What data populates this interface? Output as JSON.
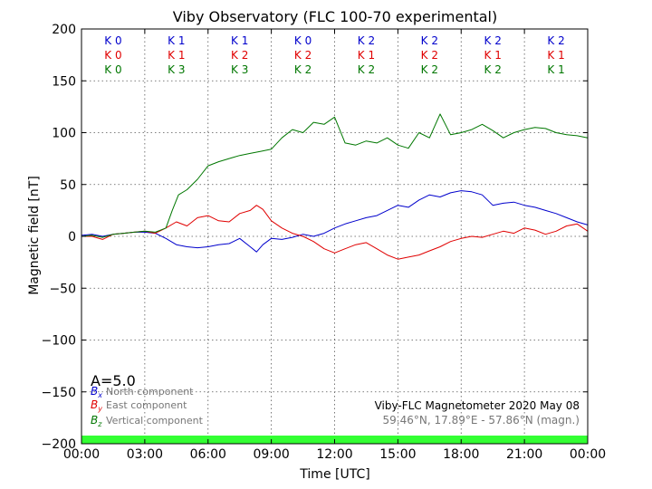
{
  "chart_data": {
    "type": "line",
    "title": "Viby Observatory (FLC 100-70 experimental)",
    "xlabel": "Time [UTC]",
    "ylabel": "Magnetic field [nT]",
    "xlim": [
      0,
      24
    ],
    "ylim": [
      -200,
      200
    ],
    "x_ticks": [
      0,
      3,
      6,
      9,
      12,
      15,
      18,
      21,
      24
    ],
    "x_tick_labels": [
      "00:00",
      "03:00",
      "06:00",
      "09:00",
      "12:00",
      "15:00",
      "18:00",
      "21:00",
      "00:00"
    ],
    "y_ticks": [
      -200,
      -150,
      -100,
      -50,
      0,
      50,
      100,
      150,
      200
    ],
    "y_tick_labels": [
      "−200",
      "−150",
      "−100",
      "−50",
      "0",
      "50",
      "100",
      "150",
      "200"
    ],
    "grid": true,
    "k_index_rows": [
      {
        "color": "#0000cc",
        "values": [
          "K 0",
          "K 1",
          "K 1",
          "K 0",
          "K 2",
          "K 2",
          "K 2",
          "K 2"
        ]
      },
      {
        "color": "#e00000",
        "values": [
          "K 0",
          "K 1",
          "K 2",
          "K 2",
          "K 1",
          "K 2",
          "K 1",
          "K 1"
        ]
      },
      {
        "color": "#007700",
        "values": [
          "K 0",
          "K 3",
          "K 3",
          "K 2",
          "K 2",
          "K 2",
          "K 2",
          "K 1"
        ]
      }
    ],
    "a_index": "A=5.0",
    "legend_placement": "bottom-left",
    "legend": [
      {
        "symbol": "B",
        "sub": "x",
        "label": "North component",
        "color": "#0000cc"
      },
      {
        "symbol": "B",
        "sub": "y",
        "label": "East component",
        "color": "#e00000"
      },
      {
        "symbol": "B",
        "sub": "z",
        "label": "Vertical component",
        "color": "#007700"
      }
    ],
    "info_line_1": "Viby-FLC Magnetometer 2020 May 08",
    "info_line_2": "59.46°N, 17.89°E - 57.86°N (magn.)",
    "activity_bar_color": "#33ff33",
    "series": [
      {
        "name": "North component",
        "color": "#0000cc",
        "x": [
          0,
          0.5,
          1,
          1.5,
          2,
          2.5,
          3,
          3.5,
          4,
          4.5,
          5,
          5.5,
          6,
          6.5,
          7,
          7.5,
          8,
          8.3,
          8.6,
          9,
          9.5,
          10,
          10.5,
          11,
          11.5,
          12,
          12.5,
          13,
          13.5,
          14,
          14.5,
          15,
          15.5,
          16,
          16.5,
          17,
          17.5,
          18,
          18.5,
          19,
          19.5,
          20,
          20.5,
          21,
          21.5,
          22,
          22.5,
          23,
          23.5,
          24
        ],
        "y": [
          1,
          2,
          0,
          2,
          3,
          4,
          4,
          3,
          -2,
          -8,
          -10,
          -11,
          -10,
          -8,
          -7,
          -2,
          -10,
          -15,
          -8,
          -2,
          -3,
          -1,
          2,
          0,
          3,
          8,
          12,
          15,
          18,
          20,
          25,
          30,
          28,
          35,
          40,
          38,
          42,
          44,
          43,
          40,
          30,
          32,
          33,
          30,
          28,
          25,
          22,
          18,
          14,
          11
        ]
      },
      {
        "name": "East component",
        "color": "#e00000",
        "x": [
          0,
          0.5,
          1,
          1.5,
          2,
          2.5,
          3,
          3.5,
          4,
          4.5,
          5,
          5.5,
          6,
          6.5,
          7,
          7.5,
          8,
          8.3,
          8.6,
          9,
          9.5,
          10,
          10.5,
          11,
          11.5,
          12,
          12.5,
          13,
          13.5,
          14,
          14.5,
          15,
          15.5,
          16,
          16.5,
          17,
          17.5,
          18,
          18.5,
          19,
          19.5,
          20,
          20.5,
          21,
          21.5,
          22,
          22.5,
          23,
          23.5,
          24
        ],
        "y": [
          0,
          0,
          -3,
          2,
          3,
          4,
          5,
          3,
          8,
          14,
          10,
          18,
          20,
          15,
          14,
          22,
          25,
          30,
          26,
          15,
          8,
          3,
          0,
          -5,
          -12,
          -16,
          -12,
          -8,
          -6,
          -12,
          -18,
          -22,
          -20,
          -18,
          -14,
          -10,
          -5,
          -2,
          0,
          -1,
          2,
          5,
          3,
          8,
          6,
          2,
          5,
          10,
          12,
          5
        ]
      },
      {
        "name": "Vertical component",
        "color": "#007700",
        "x": [
          0,
          0.5,
          1,
          1.5,
          2,
          2.5,
          3,
          3.5,
          4,
          4.3,
          4.6,
          5,
          5.5,
          6,
          6.5,
          7,
          7.5,
          8,
          8.5,
          9,
          9.5,
          10,
          10.5,
          11,
          11.5,
          12,
          12.5,
          13,
          13.5,
          14,
          14.5,
          15,
          15.5,
          16,
          16.5,
          17,
          17.5,
          18,
          18.5,
          19,
          19.5,
          20,
          20.5,
          21,
          21.5,
          22,
          22.5,
          23,
          23.5,
          24
        ],
        "y": [
          0,
          1,
          -1,
          2,
          3,
          4,
          5,
          4,
          8,
          25,
          40,
          45,
          55,
          68,
          72,
          75,
          78,
          80,
          82,
          84,
          95,
          103,
          100,
          110,
          108,
          115,
          90,
          88,
          92,
          90,
          95,
          88,
          85,
          100,
          95,
          118,
          98,
          100,
          103,
          108,
          102,
          95,
          100,
          103,
          105,
          104,
          100,
          98,
          97,
          95
        ]
      }
    ]
  }
}
